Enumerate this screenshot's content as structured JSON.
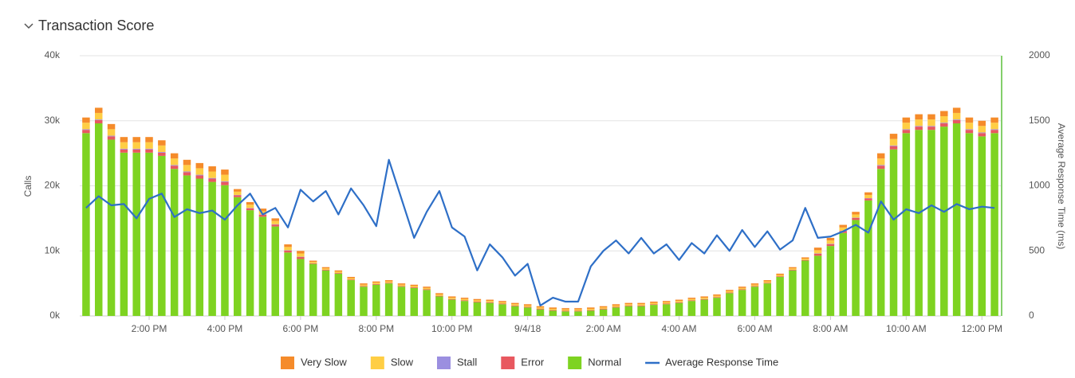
{
  "chart_data": {
    "type": "bar",
    "title": "Transaction Score",
    "stacked": true,
    "ylabel": "Calls",
    "y2label": "Average Response Time (ms)",
    "categories": [
      null,
      null,
      null,
      null,
      null,
      "2:00 PM",
      null,
      null,
      null,
      null,
      null,
      "4:00 PM",
      null,
      null,
      null,
      null,
      null,
      "6:00 PM",
      null,
      null,
      null,
      null,
      null,
      "8:00 PM",
      null,
      null,
      null,
      null,
      null,
      "10:00 PM",
      null,
      null,
      null,
      null,
      null,
      "9/4/18",
      null,
      null,
      null,
      null,
      null,
      "2:00 AM",
      null,
      null,
      null,
      null,
      null,
      "4:00 AM",
      null,
      null,
      null,
      null,
      null,
      "6:00 AM",
      null,
      null,
      null,
      null,
      null,
      "8:00 AM",
      null,
      null,
      null,
      null,
      null,
      "10:00 AM",
      null,
      null,
      null,
      null,
      null,
      "12:00 PM",
      null
    ],
    "ylim": [
      0,
      40000
    ],
    "yticks": [
      {
        "value": 0,
        "label": "0k"
      },
      {
        "value": 10000,
        "label": "10k"
      },
      {
        "value": 20000,
        "label": "20k"
      },
      {
        "value": 30000,
        "label": "30k"
      },
      {
        "value": 40000,
        "label": "40k"
      }
    ],
    "y2lim": [
      0,
      2000
    ],
    "y2ticks": [
      0,
      500,
      1000,
      1500,
      2000
    ],
    "grid": true,
    "legend": "bottom",
    "series": [
      {
        "name": "Very Slow",
        "color": "#f58b2a",
        "values": [
          800,
          800,
          800,
          800,
          800,
          800,
          800,
          800,
          800,
          800,
          800,
          800,
          400,
          400,
          400,
          400,
          400,
          400,
          200,
          200,
          200,
          200,
          200,
          200,
          200,
          200,
          200,
          200,
          200,
          200,
          200,
          200,
          200,
          200,
          200,
          200,
          200,
          200,
          200,
          200,
          200,
          200,
          200,
          200,
          200,
          200,
          200,
          200,
          200,
          200,
          200,
          200,
          200,
          200,
          200,
          200,
          200,
          200,
          400,
          400,
          400,
          400,
          400,
          800,
          800,
          800,
          800,
          800,
          800,
          800,
          800,
          800,
          800
        ]
      },
      {
        "name": "Slow",
        "color": "#ffce44",
        "values": [
          1000,
          1000,
          1000,
          1000,
          1000,
          1000,
          1000,
          1000,
          1000,
          1000,
          1000,
          1000,
          500,
          500,
          500,
          500,
          500,
          500,
          200,
          200,
          200,
          200,
          200,
          200,
          200,
          200,
          200,
          200,
          200,
          200,
          200,
          200,
          200,
          200,
          200,
          200,
          200,
          200,
          200,
          200,
          200,
          200,
          200,
          200,
          200,
          200,
          200,
          200,
          200,
          200,
          200,
          200,
          200,
          200,
          200,
          200,
          200,
          200,
          500,
          500,
          500,
          500,
          500,
          1000,
          1000,
          1000,
          1000,
          1000,
          1000,
          1000,
          1000,
          1000,
          1000
        ]
      },
      {
        "name": "Stall",
        "color": "#9b8fe0",
        "values": [
          100,
          100,
          100,
          100,
          100,
          100,
          100,
          100,
          100,
          100,
          100,
          100,
          50,
          50,
          50,
          50,
          50,
          50,
          0,
          0,
          0,
          0,
          0,
          0,
          0,
          0,
          0,
          0,
          0,
          0,
          0,
          0,
          0,
          0,
          0,
          0,
          0,
          0,
          0,
          0,
          0,
          0,
          0,
          0,
          0,
          0,
          0,
          0,
          0,
          0,
          0,
          0,
          0,
          0,
          0,
          0,
          0,
          0,
          50,
          50,
          50,
          50,
          50,
          100,
          100,
          100,
          100,
          100,
          100,
          100,
          100,
          100,
          100
        ]
      },
      {
        "name": "Error",
        "color": "#e8585f",
        "values": [
          500,
          500,
          500,
          500,
          500,
          500,
          500,
          500,
          500,
          500,
          500,
          500,
          300,
          300,
          300,
          300,
          300,
          300,
          100,
          100,
          100,
          100,
          100,
          100,
          100,
          100,
          100,
          100,
          100,
          100,
          100,
          100,
          100,
          100,
          100,
          100,
          100,
          100,
          100,
          100,
          100,
          100,
          100,
          100,
          100,
          100,
          100,
          100,
          100,
          100,
          100,
          100,
          100,
          100,
          100,
          100,
          100,
          100,
          300,
          300,
          300,
          300,
          300,
          500,
          500,
          500,
          500,
          500,
          500,
          500,
          500,
          500,
          500
        ]
      },
      {
        "name": "Normal",
        "color": "#7ed321",
        "values": [
          28100,
          29600,
          27100,
          25100,
          25100,
          25100,
          24600,
          22600,
          21600,
          21100,
          20600,
          20100,
          18250,
          16250,
          15250,
          13750,
          9750,
          8750,
          8000,
          7000,
          6500,
          5500,
          4500,
          4800,
          5000,
          4500,
          4300,
          4000,
          3000,
          2500,
          2300,
          2100,
          2000,
          1800,
          1500,
          1300,
          1000,
          800,
          700,
          700,
          800,
          1000,
          1300,
          1500,
          1500,
          1700,
          1800,
          2000,
          2300,
          2500,
          2800,
          3500,
          4000,
          4500,
          5000,
          6000,
          7000,
          8500,
          9250,
          10750,
          12750,
          14750,
          17750,
          22600,
          25600,
          28100,
          28600,
          28600,
          29100,
          29600,
          28100,
          27600,
          28100
        ]
      },
      {
        "name": "Average Response Time",
        "color": "#2e6fc7",
        "axis": "y2",
        "type": "line",
        "values": [
          830,
          920,
          850,
          860,
          750,
          900,
          940,
          760,
          820,
          790,
          810,
          740,
          850,
          940,
          780,
          830,
          680,
          970,
          880,
          960,
          780,
          980,
          850,
          690,
          1200,
          900,
          600,
          800,
          960,
          680,
          610,
          350,
          550,
          450,
          310,
          400,
          80,
          140,
          110,
          110,
          380,
          500,
          580,
          480,
          600,
          480,
          550,
          430,
          560,
          480,
          620,
          500,
          660,
          530,
          650,
          510,
          580,
          830,
          600,
          610,
          650,
          700,
          640,
          880,
          740,
          820,
          790,
          850,
          800,
          860,
          820,
          840,
          830
        ]
      }
    ]
  }
}
